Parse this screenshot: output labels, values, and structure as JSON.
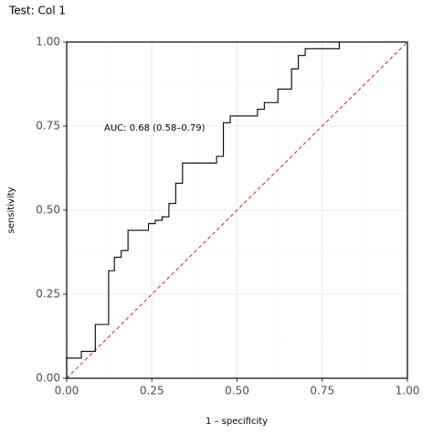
{
  "chart_data": {
    "type": "step",
    "title": "Test: Col 1",
    "x_label": "1 – specificity",
    "y_label": "sensitivity",
    "annotation": "AUC: 0.68 (0.58–0.79)",
    "series": [
      {
        "color": "#000000",
        "x": [
          0,
          0,
          0.043,
          0.043,
          0.084,
          0.084,
          0.123,
          0.123,
          0.14,
          0.14,
          0.16,
          0.16,
          0.18,
          0.18,
          0.24,
          0.24,
          0.26,
          0.26,
          0.28,
          0.28,
          0.3,
          0.3,
          0.32,
          0.32,
          0.34,
          0.34,
          0.44,
          0.44,
          0.46,
          0.46,
          0.48,
          0.48,
          0.56,
          0.56,
          0.58,
          0.58,
          0.62,
          0.62,
          0.66,
          0.66,
          0.68,
          0.68,
          0.7,
          0.7,
          0.8,
          0.8,
          1.0
        ],
        "values": [
          0,
          0.06,
          0.06,
          0.08,
          0.08,
          0.16,
          0.16,
          0.32,
          0.32,
          0.36,
          0.36,
          0.38,
          0.38,
          0.44,
          0.44,
          0.46,
          0.46,
          0.47,
          0.47,
          0.48,
          0.48,
          0.52,
          0.52,
          0.58,
          0.58,
          0.64,
          0.64,
          0.66,
          0.66,
          0.76,
          0.76,
          0.78,
          0.78,
          0.8,
          0.8,
          0.82,
          0.82,
          0.86,
          0.86,
          0.92,
          0.92,
          0.96,
          0.96,
          0.98,
          0.98,
          1.0,
          1.0
        ]
      }
    ],
    "reference": {
      "x": [
        0,
        1
      ],
      "values": [
        0,
        1
      ],
      "color": "#e41a1c",
      "dashed": true
    },
    "xlim": [
      0,
      1
    ],
    "ylim": [
      0,
      1
    ],
    "xticks": [
      {
        "value": 0,
        "label": "0.00"
      },
      {
        "value": 0.25,
        "label": "0.25"
      },
      {
        "value": 0.5,
        "label": "0.50"
      },
      {
        "value": 0.75,
        "label": "0.75"
      },
      {
        "value": 1,
        "label": "1.00"
      }
    ],
    "yticks": [
      {
        "value": 0,
        "label": "0.00"
      },
      {
        "value": 0.25,
        "label": "0.25"
      },
      {
        "value": 0.5,
        "label": "0.50"
      },
      {
        "value": 0.75,
        "label": "0.75"
      },
      {
        "value": 1,
        "label": "1.00"
      }
    ],
    "grid": true
  }
}
